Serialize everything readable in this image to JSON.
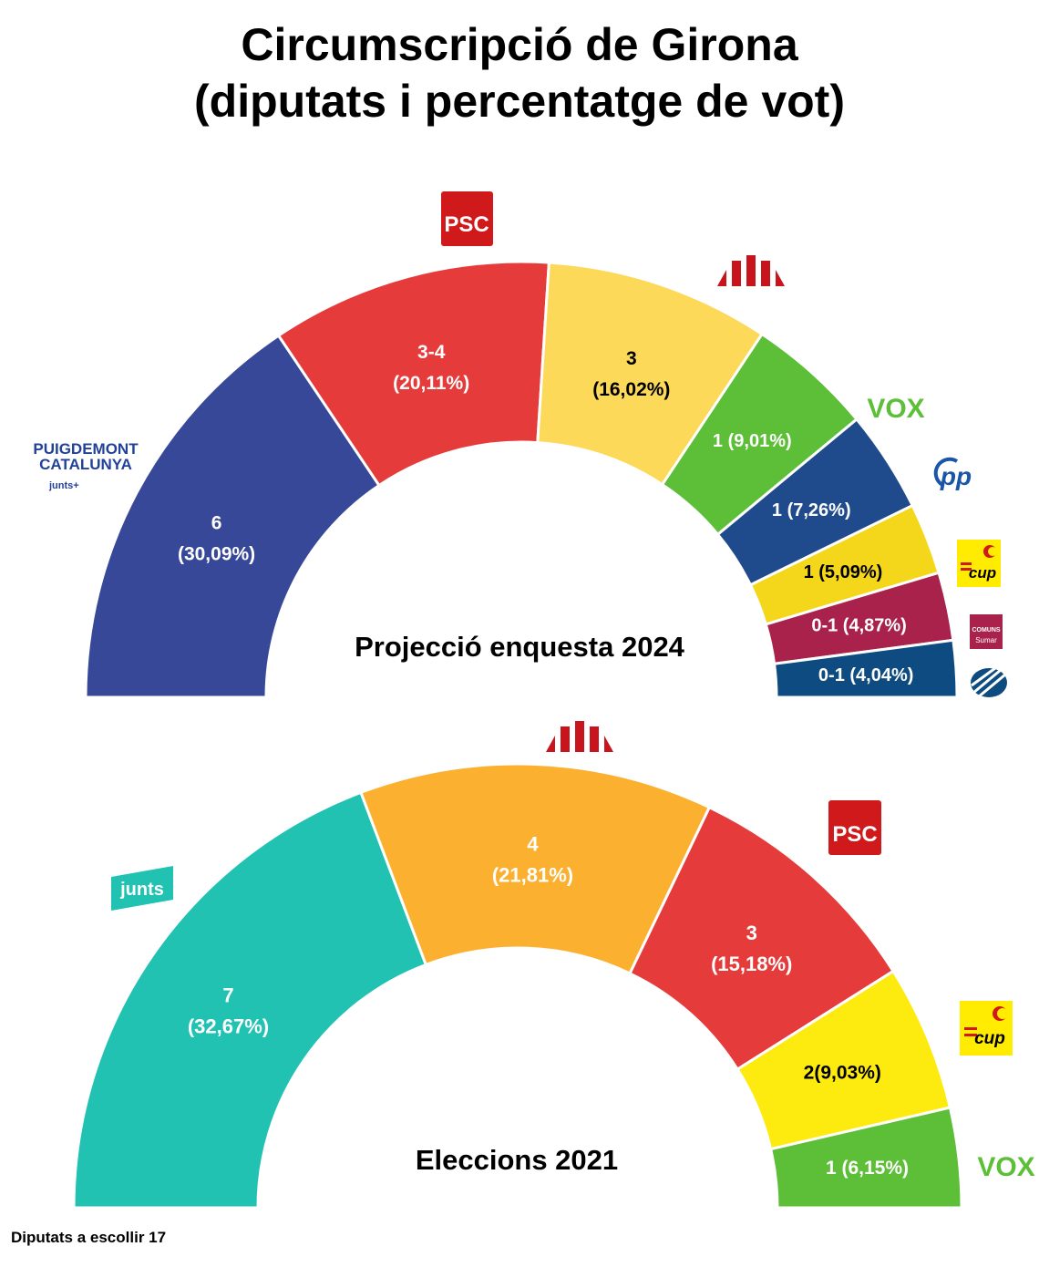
{
  "title": {
    "line1": "Circumscripció de Girona",
    "line2": "(diputats i percentatge de vot)"
  },
  "footer": "Diputats a escollir 17",
  "colors": {
    "junts_2024": "#374899",
    "psc": "#e63b3b",
    "erc_2024": "#fcd958",
    "vox": "#5cbf37",
    "pp": "#1f4a8c",
    "cup_2024": "#f4d71a",
    "comuns": "#a8224c",
    "aliança": "#0e4b80",
    "junts_2021": "#22c2b3",
    "erc_2021": "#fbb030",
    "cup_2021": "#fdea0e"
  },
  "chart_data": [
    {
      "type": "pie",
      "subtype": "semicircle-parliament",
      "title": "Projecció enquesta 2024",
      "slices": [
        {
          "party": "PUIGDEMONT CATALUNYA junts+",
          "seats": "6",
          "percent": 30.09,
          "label_seats": "6",
          "label_pct": "(30,09%)"
        },
        {
          "party": "PSC",
          "seats": "3-4",
          "percent": 20.11,
          "label_seats": "3-4",
          "label_pct": "(20,11%)"
        },
        {
          "party": "ERC",
          "seats": "3",
          "percent": 16.02,
          "label_seats": "3",
          "label_pct": "(16,02%)"
        },
        {
          "party": "VOX",
          "seats": "1",
          "percent": 9.01,
          "label": "1 (9,01%)"
        },
        {
          "party": "PP",
          "seats": "1",
          "percent": 7.26,
          "label": "1 (7,26%)"
        },
        {
          "party": "CUP",
          "seats": "1",
          "percent": 5.09,
          "label": "1 (5,09%)"
        },
        {
          "party": "COMUNS Sumar",
          "seats": "0-1",
          "percent": 4.87,
          "label": "0-1 (4,87%)"
        },
        {
          "party": "Aliança Catalana",
          "seats": "0-1",
          "percent": 4.04,
          "label": "0-1 (4,04%)"
        }
      ]
    },
    {
      "type": "pie",
      "subtype": "semicircle-parliament",
      "title": "Eleccions 2021",
      "slices": [
        {
          "party": "junts",
          "seats": "7",
          "percent": 32.67,
          "label_seats": "7",
          "label_pct": "(32,67%)"
        },
        {
          "party": "ERC",
          "seats": "4",
          "percent": 21.81,
          "label_seats": "4",
          "label_pct": "(21,81%)"
        },
        {
          "party": "PSC",
          "seats": "3",
          "percent": 15.18,
          "label_seats": "3",
          "label_pct": "(15,18%)"
        },
        {
          "party": "CUP",
          "seats": "2",
          "percent": 9.03,
          "label": "2(9,03%)"
        },
        {
          "party": "VOX",
          "seats": "1",
          "percent": 6.15,
          "label": "1 (6,15%)"
        }
      ]
    }
  ],
  "logos": {
    "psc": "PSC",
    "vox": "VOX",
    "pp": "pp",
    "cup": "cup",
    "comuns_line1": "COMUNS",
    "comuns_line2": "Sumar",
    "puigdemont_line1": "PUIGDEMONT",
    "puigdemont_line2": "CATALUNYA",
    "puigdemont_line3": "junts+",
    "junts": "junts"
  }
}
